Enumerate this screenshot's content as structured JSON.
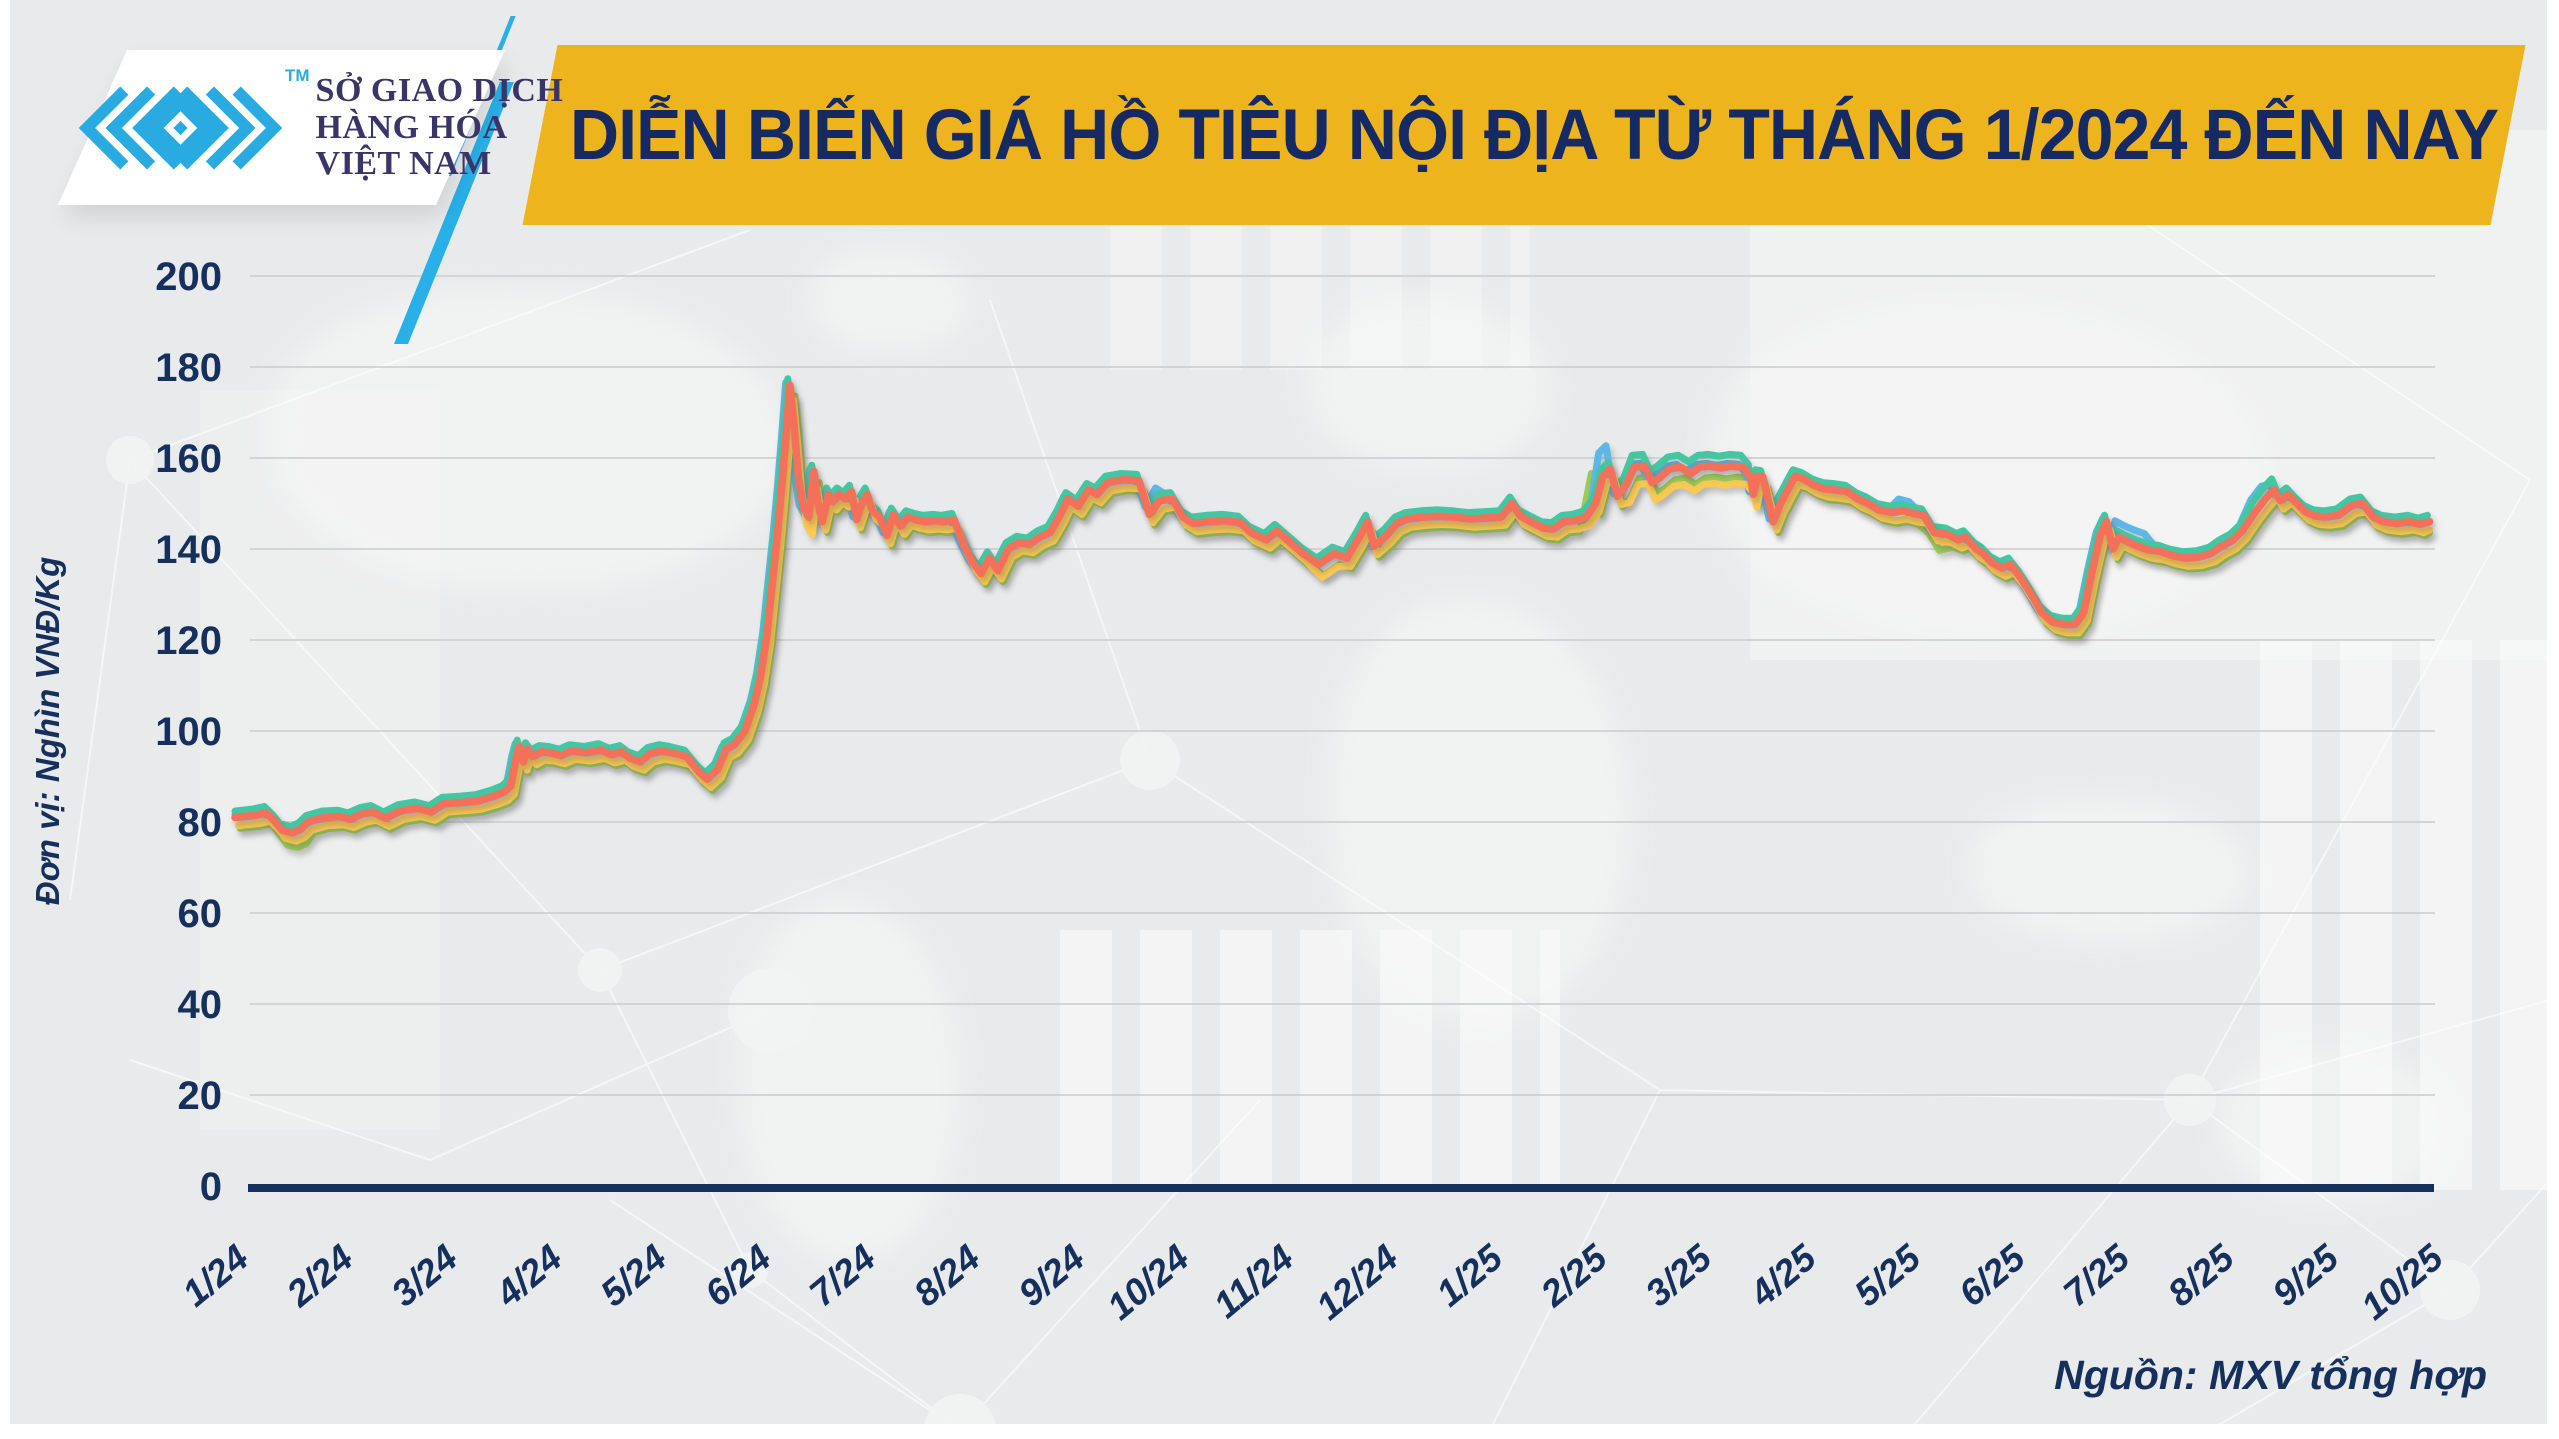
{
  "header": {
    "title": "DIỄN BIẾN GIÁ HỒ TIÊU NỘI ĐỊA TỪ THÁNG 1/2024 ĐẾN NAY",
    "logo": {
      "org_lines": [
        "SỞ GIAO DỊCH",
        "HÀNG HÓA",
        "VIỆT NAM"
      ],
      "trademark": "TM"
    },
    "banner_color": "#eeb41e",
    "accent_blue": "#29b0e8",
    "navy": "#152a63"
  },
  "chart": {
    "unit_label": "Đơn vị: Nghìn VNĐ/Kg",
    "source_label": "Nguồn: MXV tổng hợp",
    "axis_color": "#16305e",
    "grid_color": "#cfd0d2"
  },
  "chart_data": {
    "type": "line",
    "title": "DIỄN BIẾN GIÁ HỒ TIÊU NỘI ĐỊA TỪ THÁNG 1/2024 ĐẾN NAY",
    "ylabel": "Đơn vị: Nghìn VNĐ/Kg",
    "source": "Nguồn: MXV tổng hợp",
    "ylim": [
      0,
      200
    ],
    "y_ticks": [
      0,
      20,
      40,
      60,
      80,
      100,
      120,
      140,
      160,
      180,
      200
    ],
    "x_tick_labels": [
      "1/24",
      "2/24",
      "3/24",
      "4/24",
      "5/24",
      "6/24",
      "7/24",
      "8/24",
      "9/24",
      "10/24",
      "11/24",
      "12/24",
      "1/25",
      "2/25",
      "3/25",
      "4/25",
      "5/25",
      "6/25",
      "7/25",
      "8/25",
      "9/25",
      "10/25"
    ],
    "x_unit": "months since 1/2024 (0 = 1/24)",
    "grid": "horizontal",
    "legend": "none",
    "series_main": {
      "name": "gia-ho-tieu-noi-dia (đường cam)",
      "color": "#f4705a",
      "stroke_width": 7.5,
      "points": [
        [
          0,
          81
        ],
        [
          0.2,
          81.5
        ],
        [
          0.3,
          82
        ],
        [
          0.38,
          80.2
        ],
        [
          0.45,
          78.2
        ],
        [
          0.55,
          77.6
        ],
        [
          0.63,
          78.4
        ],
        [
          0.7,
          80
        ],
        [
          0.85,
          81
        ],
        [
          1,
          81.2
        ],
        [
          1.1,
          80.6
        ],
        [
          1.22,
          81.8
        ],
        [
          1.32,
          82.2
        ],
        [
          1.44,
          80.8
        ],
        [
          1.58,
          82.4
        ],
        [
          1.74,
          83
        ],
        [
          1.88,
          82.2
        ],
        [
          2,
          84
        ],
        [
          2.18,
          84.3
        ],
        [
          2.32,
          84.6
        ],
        [
          2.47,
          85.6
        ],
        [
          2.58,
          86.6
        ],
        [
          2.64,
          88
        ],
        [
          2.69,
          94
        ],
        [
          2.72,
          96.6
        ],
        [
          2.76,
          93.2
        ],
        [
          2.8,
          96
        ],
        [
          2.85,
          94.4
        ],
        [
          2.93,
          95.4
        ],
        [
          3.02,
          95.2
        ],
        [
          3.12,
          94.6
        ],
        [
          3.22,
          95.6
        ],
        [
          3.36,
          95.2
        ],
        [
          3.5,
          95.8
        ],
        [
          3.6,
          94.8
        ],
        [
          3.7,
          95.4
        ],
        [
          3.78,
          94
        ],
        [
          3.88,
          93.2
        ],
        [
          3.97,
          95
        ],
        [
          4.08,
          95.6
        ],
        [
          4.18,
          95.2
        ],
        [
          4.32,
          94.4
        ],
        [
          4.44,
          91
        ],
        [
          4.52,
          89.4
        ],
        [
          4.62,
          91.6
        ],
        [
          4.7,
          96
        ],
        [
          4.78,
          97
        ],
        [
          4.88,
          100
        ],
        [
          4.97,
          106
        ],
        [
          5.03,
          112
        ],
        [
          5.09,
          121
        ],
        [
          5.14,
          132
        ],
        [
          5.19,
          143
        ],
        [
          5.23,
          153
        ],
        [
          5.27,
          164
        ],
        [
          5.31,
          176
        ],
        [
          5.35,
          167
        ],
        [
          5.39,
          156
        ],
        [
          5.44,
          149
        ],
        [
          5.49,
          147
        ],
        [
          5.54,
          157
        ],
        [
          5.58,
          150
        ],
        [
          5.62,
          146
        ],
        [
          5.68,
          152
        ],
        [
          5.72,
          150.4
        ],
        [
          5.78,
          152
        ],
        [
          5.84,
          151
        ],
        [
          5.9,
          152.6
        ],
        [
          5.95,
          146.5
        ],
        [
          6,
          150
        ],
        [
          6.05,
          152
        ],
        [
          6.1,
          148.4
        ],
        [
          6.17,
          147
        ],
        [
          6.24,
          143
        ],
        [
          6.3,
          147.6
        ],
        [
          6.37,
          145
        ],
        [
          6.44,
          147
        ],
        [
          6.52,
          146.4
        ],
        [
          6.6,
          146
        ],
        [
          6.7,
          146.2
        ],
        [
          6.78,
          146
        ],
        [
          6.88,
          146.4
        ],
        [
          6.97,
          141
        ],
        [
          7.06,
          137
        ],
        [
          7.14,
          134.6
        ],
        [
          7.22,
          138
        ],
        [
          7.3,
          135.2
        ],
        [
          7.4,
          140
        ],
        [
          7.5,
          141.4
        ],
        [
          7.6,
          141
        ],
        [
          7.7,
          142.6
        ],
        [
          7.8,
          143.6
        ],
        [
          7.9,
          147.6
        ],
        [
          7.97,
          151
        ],
        [
          8.07,
          149.4
        ],
        [
          8.17,
          153
        ],
        [
          8.25,
          152
        ],
        [
          8.35,
          154.6
        ],
        [
          8.5,
          155.2
        ],
        [
          8.65,
          155
        ],
        [
          8.75,
          147.6
        ],
        [
          8.85,
          150.6
        ],
        [
          8.97,
          151
        ],
        [
          9.07,
          147
        ],
        [
          9.17,
          145.6
        ],
        [
          9.32,
          146
        ],
        [
          9.47,
          146.2
        ],
        [
          9.62,
          145.8
        ],
        [
          9.72,
          143.6
        ],
        [
          9.87,
          142
        ],
        [
          9.97,
          144
        ],
        [
          10.12,
          141
        ],
        [
          10.22,
          139
        ],
        [
          10.37,
          136.6
        ],
        [
          10.52,
          139
        ],
        [
          10.64,
          138
        ],
        [
          10.77,
          143
        ],
        [
          10.84,
          146
        ],
        [
          10.9,
          140.6
        ],
        [
          11.02,
          143
        ],
        [
          11.12,
          145.6
        ],
        [
          11.22,
          146.6
        ],
        [
          11.37,
          147
        ],
        [
          11.52,
          147.2
        ],
        [
          11.67,
          147
        ],
        [
          11.82,
          146.6
        ],
        [
          11.97,
          146.8
        ],
        [
          12.12,
          147
        ],
        [
          12.22,
          150
        ],
        [
          12.3,
          147.2
        ],
        [
          12.4,
          146
        ],
        [
          12.52,
          144.6
        ],
        [
          12.62,
          144.4
        ],
        [
          12.72,
          146
        ],
        [
          12.82,
          146.2
        ],
        [
          12.93,
          147
        ],
        [
          13.02,
          150
        ],
        [
          13.09,
          156
        ],
        [
          13.16,
          157.6
        ],
        [
          13.23,
          151.6
        ],
        [
          13.31,
          154
        ],
        [
          13.39,
          158
        ],
        [
          13.49,
          158.2
        ],
        [
          13.56,
          154.6
        ],
        [
          13.63,
          155.6
        ],
        [
          13.73,
          157.6
        ],
        [
          13.83,
          158
        ],
        [
          13.93,
          156.6
        ],
        [
          14.02,
          158
        ],
        [
          14.12,
          158.2
        ],
        [
          14.22,
          157.8
        ],
        [
          14.32,
          158.2
        ],
        [
          14.43,
          158
        ],
        [
          14.5,
          156
        ],
        [
          14.53,
          152
        ],
        [
          14.57,
          156
        ],
        [
          14.62,
          155.8
        ],
        [
          14.68,
          150
        ],
        [
          14.72,
          146
        ],
        [
          14.79,
          150
        ],
        [
          14.86,
          153
        ],
        [
          14.93,
          156
        ],
        [
          15.01,
          155.4
        ],
        [
          15.11,
          154
        ],
        [
          15.21,
          153.2
        ],
        [
          15.31,
          153
        ],
        [
          15.43,
          152.6
        ],
        [
          15.53,
          151
        ],
        [
          15.63,
          150
        ],
        [
          15.73,
          148.6
        ],
        [
          15.86,
          148
        ],
        [
          15.96,
          148.4
        ],
        [
          16.06,
          147.8
        ],
        [
          16.16,
          147.4
        ],
        [
          16.26,
          143.6
        ],
        [
          16.39,
          143.2
        ],
        [
          16.49,
          142
        ],
        [
          16.56,
          142.6
        ],
        [
          16.66,
          140
        ],
        [
          16.73,
          139
        ],
        [
          16.81,
          137
        ],
        [
          16.91,
          135.8
        ],
        [
          16.99,
          136.6
        ],
        [
          17.09,
          133.6
        ],
        [
          17.19,
          130
        ],
        [
          17.29,
          126
        ],
        [
          17.39,
          124
        ],
        [
          17.5,
          123.4
        ],
        [
          17.61,
          123.4
        ],
        [
          17.69,
          126
        ],
        [
          17.77,
          135
        ],
        [
          17.85,
          143
        ],
        [
          17.91,
          146
        ],
        [
          17.97,
          140
        ],
        [
          18.03,
          142.6
        ],
        [
          18.11,
          141.6
        ],
        [
          18.21,
          140.6
        ],
        [
          18.31,
          139.8
        ],
        [
          18.43,
          139.4
        ],
        [
          18.53,
          138.6
        ],
        [
          18.66,
          138
        ],
        [
          18.79,
          138.2
        ],
        [
          18.91,
          139
        ],
        [
          19.01,
          140.6
        ],
        [
          19.11,
          141.8
        ],
        [
          19.21,
          144
        ],
        [
          19.33,
          148
        ],
        [
          19.43,
          151
        ],
        [
          19.51,
          153
        ],
        [
          19.57,
          150.6
        ],
        [
          19.65,
          152
        ],
        [
          19.73,
          150
        ],
        [
          19.81,
          148.2
        ],
        [
          19.91,
          147.2
        ],
        [
          20.01,
          147
        ],
        [
          20.13,
          147.4
        ],
        [
          20.26,
          149.6
        ],
        [
          20.36,
          150
        ],
        [
          20.46,
          147
        ],
        [
          20.56,
          146
        ],
        [
          20.69,
          145.6
        ],
        [
          20.81,
          146
        ],
        [
          20.91,
          145.4
        ],
        [
          21,
          146
        ]
      ]
    },
    "series_derived": [
      {
        "name": "duong-xanh-la",
        "color": "#9ccb55",
        "stroke_width": 7,
        "offset": -2.4,
        "x_shift": 0.05,
        "regions": [
          [
            12.86,
            12.99,
            12
          ],
          [
            16.1,
            16.4,
            -1.5
          ],
          [
            0.35,
            0.68,
            -0.8
          ]
        ]
      },
      {
        "name": "duong-xanh-duong",
        "color": "#5fb7e5",
        "stroke_width": 7,
        "offset": 0.6,
        "x_shift": -0.04,
        "regions": [
          [
            13.02,
            13.21,
            4.5
          ],
          [
            15.86,
            16.14,
            2.0
          ],
          [
            17.98,
            18.42,
            3.0
          ],
          [
            19.28,
            19.52,
            2.2
          ],
          [
            8.73,
            8.97,
            2.2
          ]
        ]
      },
      {
        "name": "duong-xanh-ngoc",
        "color": "#45c6a2",
        "stroke_width": 7,
        "offset": 1.4,
        "x_shift": -0.02,
        "regions": [
          [
            13.3,
            14.55,
            1.2
          ],
          [
            19.25,
            19.55,
            1.0
          ]
        ]
      },
      {
        "name": "duong-vang",
        "color": "#fbc851",
        "stroke_width": 7,
        "offset": -1.8,
        "x_shift": 0.035,
        "regions": [
          [
            13.25,
            14.55,
            -2.0
          ],
          [
            5.28,
            5.6,
            -2.0
          ],
          [
            10.25,
            10.6,
            -1.0
          ]
        ]
      }
    ]
  }
}
